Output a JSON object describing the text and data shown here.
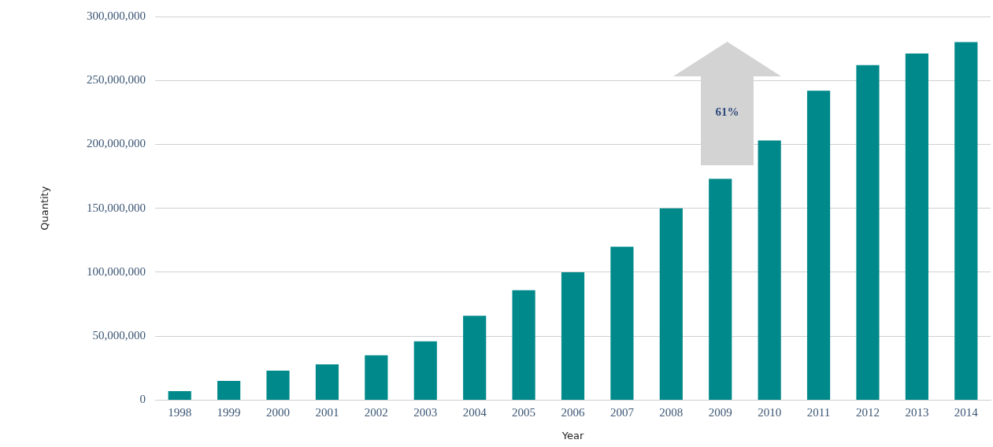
{
  "chart_data": {
    "type": "bar",
    "xlabel": "Year",
    "ylabel": "Quantity",
    "categories": [
      "1998",
      "1999",
      "2000",
      "2001",
      "2002",
      "2003",
      "2004",
      "2005",
      "2006",
      "2007",
      "2008",
      "2009",
      "2010",
      "2011",
      "2012",
      "2013",
      "2014"
    ],
    "values": [
      7000000,
      15000000,
      23000000,
      28000000,
      35000000,
      46000000,
      66000000,
      86000000,
      100000000,
      120000000,
      150000000,
      173000000,
      203000000,
      242000000,
      262000000,
      271000000,
      280000000
    ],
    "color": "#00898a",
    "ylim": [
      0,
      300000000
    ],
    "yticks": [
      0,
      {
        "value": 50000000,
        "label": "50,000,000"
      },
      {
        "value": 100000000,
        "label": "100,000,000"
      },
      {
        "value": 150000000,
        "label": "150,000,000"
      },
      {
        "value": 200000000,
        "label": "200,000,000"
      },
      {
        "value": 250000000,
        "label": "250,000,000"
      },
      {
        "value": 300000000,
        "label": "300,000,000"
      }
    ],
    "grid": "y",
    "legend": false,
    "annotations": [
      "61%"
    ]
  }
}
